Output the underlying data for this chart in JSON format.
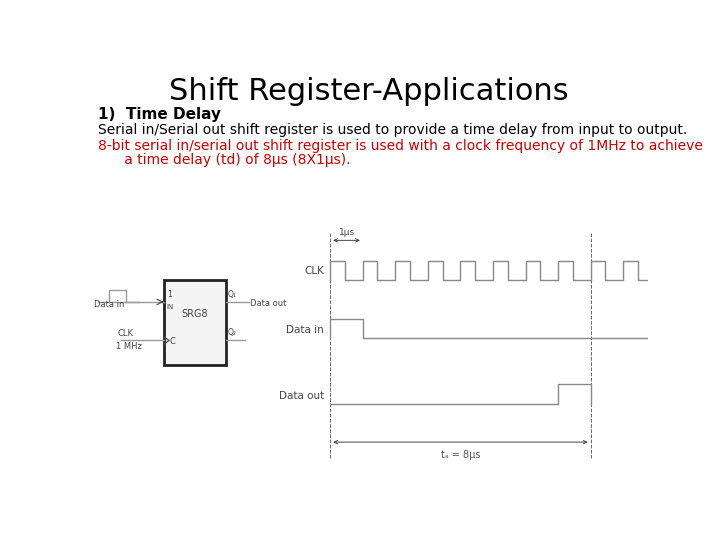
{
  "title": "Shift Register-Applications",
  "title_fontsize": 22,
  "bg_color": "#ffffff",
  "line1_bold": "1)  Time Delay",
  "line2": "Serial in/Serial out shift register is used to provide a time delay from input to output.",
  "line3_red": "8-bit serial in/serial out shift register is used with a clock frequency of 1MHz to achieve",
  "line4_red": "      a time delay (td) of 8μs (8X1μs).",
  "text_fontsize": 10,
  "red_color": "#cc0000",
  "black_color": "#000000",
  "gray_color": "#888888",
  "dark_gray": "#444444",
  "mid_gray": "#666666",
  "light_box": "#f4f4f4",
  "box_edge": "#222222",
  "diagram_line_color": "#999999",
  "timing_line_color": "#888888",
  "timing_label_color": "#555555"
}
